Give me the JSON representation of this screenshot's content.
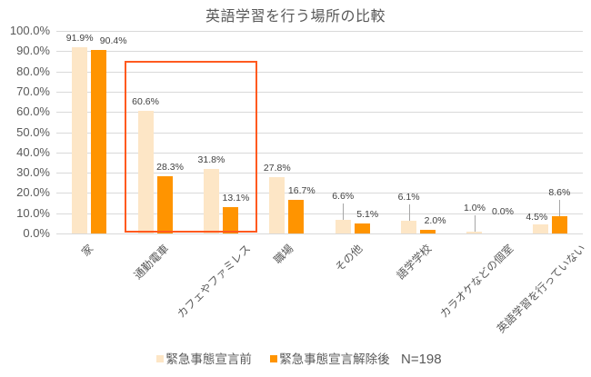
{
  "chart_data": {
    "type": "bar",
    "title": "英語学習を行う場所の比較",
    "xlabel": "",
    "ylabel": "",
    "ylim": [
      0,
      100
    ],
    "y_ticks": [
      "0.0%",
      "10.0%",
      "20.0%",
      "30.0%",
      "40.0%",
      "50.0%",
      "60.0%",
      "70.0%",
      "80.0%",
      "90.0%",
      "100.0%"
    ],
    "grid": true,
    "legend_position": "bottom",
    "categories": [
      "家",
      "通勤電車",
      "カフェやファミレス",
      "職場",
      "その他",
      "語学学校",
      "カラオケなどの個室",
      "英語学習を行っていない"
    ],
    "series": [
      {
        "name": "緊急事態宣言前",
        "color": "#FDE6C6",
        "values": [
          91.9,
          60.6,
          31.8,
          27.8,
          6.6,
          6.1,
          1.0,
          4.5
        ],
        "labels": [
          "91.9%",
          "60.6%",
          "31.8%",
          "27.8%",
          "6.6%",
          "6.1%",
          "1.0%",
          "4.5%"
        ]
      },
      {
        "name": "緊急事態宣言解除後",
        "color": "#FF9400",
        "values": [
          90.4,
          28.3,
          13.1,
          16.7,
          5.1,
          2.0,
          0.0,
          8.6
        ],
        "labels": [
          "90.4%",
          "28.3%",
          "13.1%",
          "16.7%",
          "5.1%",
          "2.0%",
          "0.0%",
          "8.6%"
        ]
      }
    ],
    "annotations": [
      "N=198",
      "highlight box around 通勤電車 and カフェやファミレス"
    ],
    "highlight_color": "#FF5A1F"
  },
  "legend": {
    "items": [
      {
        "label": "緊急事態宣言前",
        "color": "#FDE6C6"
      },
      {
        "label": "緊急事態宣言解除後",
        "color": "#FF9400"
      }
    ],
    "note": "N=198"
  }
}
